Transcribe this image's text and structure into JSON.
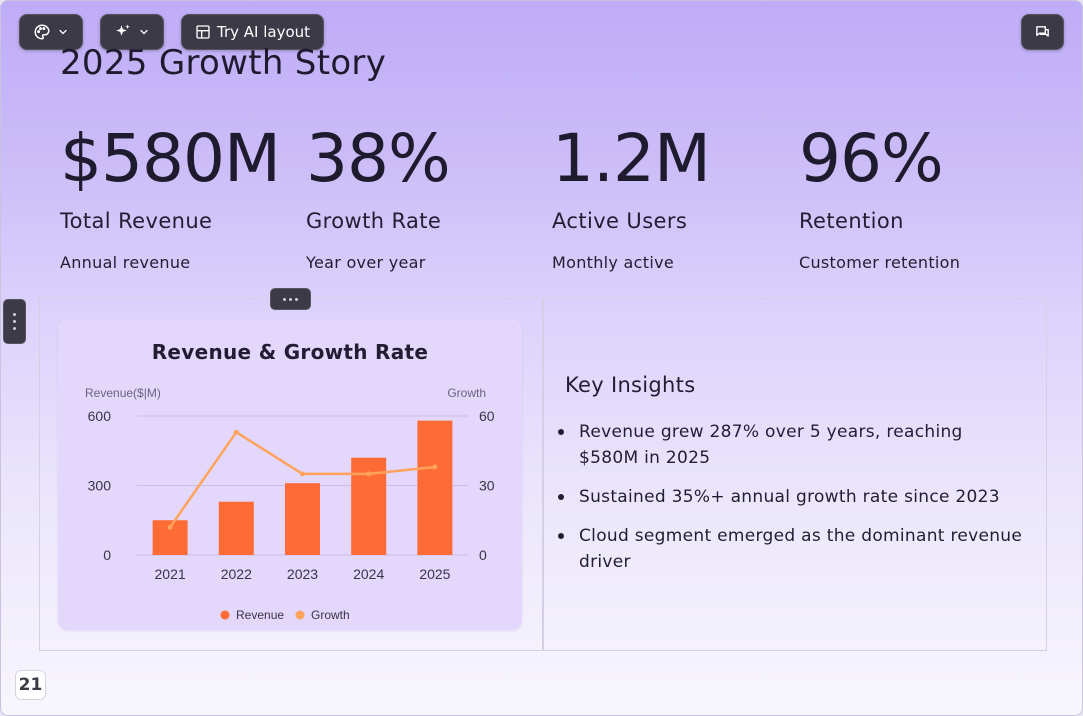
{
  "toolbar": {
    "ai_layout_label": "Try AI layout"
  },
  "slide": {
    "title": "2025 Growth Story",
    "stats": [
      {
        "value": "$580M",
        "label": "Total Revenue",
        "sub": "Annual revenue"
      },
      {
        "value": "38%",
        "label": "Growth Rate",
        "sub": "Year over year"
      },
      {
        "value": "1.2M",
        "label": "Active Users",
        "sub": "Monthly active"
      },
      {
        "value": "96%",
        "label": "Retention",
        "sub": "Customer retention"
      }
    ],
    "insights": {
      "title": "Key Insights",
      "items": [
        "Revenue grew 287% over 5 years, reaching $580M in 2025",
        "Sustained 35%+ annual growth rate since 2023",
        "Cloud segment emerged as the dominant revenue driver"
      ]
    },
    "page_number": "21"
  },
  "colors": {
    "bar": "#ff6b35",
    "line": "#ffa35c",
    "toolbar_bg": "#3b3a46"
  },
  "chart_data": {
    "type": "bar",
    "title": "Revenue & Growth Rate",
    "categories": [
      "2021",
      "2022",
      "2023",
      "2024",
      "2025"
    ],
    "y_left_label": "Revenue($|M)",
    "y_right_label": "Growth",
    "y_left_range": [
      0,
      600
    ],
    "y_left_ticks": [
      "0",
      "300",
      "600"
    ],
    "y_right_range": [
      0,
      60
    ],
    "y_right_ticks": [
      "0",
      "30",
      "60"
    ],
    "series": [
      {
        "name": "Revenue",
        "type": "bar",
        "axis": "left",
        "values": [
          150,
          230,
          310,
          420,
          580
        ]
      },
      {
        "name": "Growth",
        "type": "line",
        "axis": "right",
        "values": [
          12,
          53,
          35,
          35,
          38
        ]
      }
    ],
    "legend_position": "bottom",
    "grid": true
  }
}
